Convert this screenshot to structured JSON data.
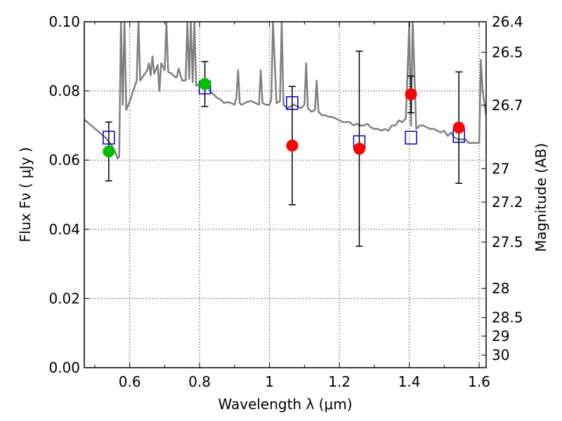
{
  "chart_data": {
    "type": "scatter",
    "title": "",
    "xlabel": "Wavelength  λ (μm)",
    "ylabel": "Flux  Fν  ( μJy )",
    "y2label": "Magnitude (AB)",
    "xlim": [
      0.47,
      1.62
    ],
    "ylim": [
      0.0,
      0.1
    ],
    "grid": true,
    "x_ticks": [
      {
        "value": 0.6,
        "label": "0.6"
      },
      {
        "value": 0.8,
        "label": "0.8"
      },
      {
        "value": 1.0,
        "label": "1"
      },
      {
        "value": 1.2,
        "label": "1.2"
      },
      {
        "value": 1.4,
        "label": "1.4"
      },
      {
        "value": 1.6,
        "label": "1.6"
      }
    ],
    "y_ticks": [
      {
        "value": 0.0,
        "label": "0.00"
      },
      {
        "value": 0.02,
        "label": "0.02"
      },
      {
        "value": 0.04,
        "label": "0.04"
      },
      {
        "value": 0.06,
        "label": "0.06"
      },
      {
        "value": 0.08,
        "label": "0.08"
      },
      {
        "value": 0.1,
        "label": "0.10"
      }
    ],
    "y2_ticks": [
      {
        "label": "26.4",
        "mag": 26.4
      },
      {
        "label": "26.5",
        "mag": 26.5
      },
      {
        "label": "26.7",
        "mag": 26.7
      },
      {
        "label": "27",
        "mag": 27.0
      },
      {
        "label": "27.2",
        "mag": 27.2
      },
      {
        "label": "27.5",
        "mag": 27.5
      },
      {
        "label": "28",
        "mag": 28.0
      },
      {
        "label": "28.5",
        "mag": 28.5
      },
      {
        "label": "29",
        "mag": 29.0
      },
      {
        "label": "30",
        "mag": 30.0
      }
    ],
    "observed_points": [
      {
        "x": 0.54,
        "y": 0.0625,
        "yerr": 0.0085,
        "color": "#00c000"
      },
      {
        "x": 0.815,
        "y": 0.082,
        "yerr": 0.0065,
        "color": "#00c000"
      },
      {
        "x": 1.065,
        "y": 0.0642,
        "yerr": 0.0171,
        "color": "#ff0000"
      },
      {
        "x": 1.257,
        "y": 0.0633,
        "yerr": 0.0282,
        "color": "#ff0000"
      },
      {
        "x": 1.405,
        "y": 0.079,
        "yerr": 0.0053,
        "color": "#ff0000"
      },
      {
        "x": 1.542,
        "y": 0.0694,
        "yerr": 0.0161,
        "color": "#ff0000"
      }
    ],
    "model_points": [
      {
        "x": 0.54,
        "y": 0.0665
      },
      {
        "x": 0.815,
        "y": 0.081
      },
      {
        "x": 1.065,
        "y": 0.0765
      },
      {
        "x": 1.257,
        "y": 0.0652
      },
      {
        "x": 1.405,
        "y": 0.0665
      },
      {
        "x": 1.542,
        "y": 0.067
      }
    ],
    "sed_model": [
      [
        0.47,
        0.0717
      ],
      [
        0.49,
        0.07
      ],
      [
        0.51,
        0.0683
      ],
      [
        0.53,
        0.0666
      ],
      [
        0.55,
        0.064
      ],
      [
        0.56,
        0.062
      ],
      [
        0.565,
        0.0605
      ],
      [
        0.57,
        0.061
      ],
      [
        0.575,
        0.1
      ],
      [
        0.58,
        0.076
      ],
      [
        0.585,
        0.1
      ],
      [
        0.59,
        0.0745
      ],
      [
        0.6,
        0.077
      ],
      [
        0.61,
        0.08
      ],
      [
        0.62,
        0.083
      ],
      [
        0.625,
        0.1
      ],
      [
        0.63,
        0.083
      ],
      [
        0.64,
        0.0845
      ],
      [
        0.65,
        0.086
      ],
      [
        0.655,
        0.088
      ],
      [
        0.66,
        0.0845
      ],
      [
        0.665,
        0.09
      ],
      [
        0.67,
        0.085
      ],
      [
        0.68,
        0.0875
      ],
      [
        0.685,
        0.08
      ],
      [
        0.69,
        0.088
      ],
      [
        0.7,
        0.086
      ],
      [
        0.705,
        0.1
      ],
      [
        0.71,
        0.0855
      ],
      [
        0.72,
        0.085
      ],
      [
        0.73,
        0.084
      ],
      [
        0.735,
        0.084
      ],
      [
        0.74,
        0.0865
      ],
      [
        0.75,
        0.083
      ],
      [
        0.76,
        0.083
      ],
      [
        0.765,
        0.1
      ],
      [
        0.77,
        0.0835
      ],
      [
        0.775,
        0.1
      ],
      [
        0.78,
        0.0825
      ],
      [
        0.785,
        0.1
      ],
      [
        0.79,
        0.0815
      ],
      [
        0.8,
        0.082
      ],
      [
        0.81,
        0.082
      ],
      [
        0.82,
        0.082
      ],
      [
        0.83,
        0.08
      ],
      [
        0.84,
        0.079
      ],
      [
        0.85,
        0.078
      ],
      [
        0.86,
        0.0775
      ],
      [
        0.87,
        0.0765
      ],
      [
        0.88,
        0.0768
      ],
      [
        0.89,
        0.0765
      ],
      [
        0.9,
        0.076
      ],
      [
        0.905,
        0.078
      ],
      [
        0.91,
        0.086
      ],
      [
        0.915,
        0.0765
      ],
      [
        0.92,
        0.076
      ],
      [
        0.93,
        0.0765
      ],
      [
        0.94,
        0.077
      ],
      [
        0.95,
        0.077
      ],
      [
        0.96,
        0.0765
      ],
      [
        0.97,
        0.076
      ],
      [
        0.975,
        0.086
      ],
      [
        0.98,
        0.0765
      ],
      [
        0.99,
        0.076
      ],
      [
        1.0,
        0.076
      ],
      [
        1.005,
        0.0775
      ],
      [
        1.01,
        0.1
      ],
      [
        1.02,
        0.0765
      ],
      [
        1.03,
        0.077
      ],
      [
        1.035,
        0.1
      ],
      [
        1.04,
        0.076
      ],
      [
        1.05,
        0.075
      ],
      [
        1.06,
        0.0755
      ],
      [
        1.07,
        0.076
      ],
      [
        1.08,
        0.0755
      ],
      [
        1.09,
        0.075
      ],
      [
        1.1,
        0.076
      ],
      [
        1.105,
        0.088
      ],
      [
        1.11,
        0.075
      ],
      [
        1.12,
        0.074
      ],
      [
        1.13,
        0.0745
      ],
      [
        1.135,
        0.083
      ],
      [
        1.14,
        0.074
      ],
      [
        1.15,
        0.073
      ],
      [
        1.16,
        0.073
      ],
      [
        1.17,
        0.0725
      ],
      [
        1.18,
        0.0725
      ],
      [
        1.19,
        0.072
      ],
      [
        1.2,
        0.0715
      ],
      [
        1.21,
        0.071
      ],
      [
        1.22,
        0.071
      ],
      [
        1.23,
        0.071
      ],
      [
        1.24,
        0.07
      ],
      [
        1.25,
        0.0705
      ],
      [
        1.26,
        0.07
      ],
      [
        1.27,
        0.07
      ],
      [
        1.28,
        0.0705
      ],
      [
        1.29,
        0.0695
      ],
      [
        1.3,
        0.069
      ],
      [
        1.31,
        0.069
      ],
      [
        1.32,
        0.0685
      ],
      [
        1.33,
        0.069
      ],
      [
        1.34,
        0.0685
      ],
      [
        1.35,
        0.07
      ],
      [
        1.36,
        0.07
      ],
      [
        1.37,
        0.0715
      ],
      [
        1.38,
        0.071
      ],
      [
        1.39,
        0.072
      ],
      [
        1.395,
        0.085
      ],
      [
        1.4,
        0.1
      ],
      [
        1.405,
        0.07
      ],
      [
        1.41,
        0.1
      ],
      [
        1.42,
        0.069
      ],
      [
        1.43,
        0.07
      ],
      [
        1.44,
        0.07
      ],
      [
        1.45,
        0.0695
      ],
      [
        1.46,
        0.069
      ],
      [
        1.47,
        0.069
      ],
      [
        1.48,
        0.0685
      ],
      [
        1.49,
        0.068
      ],
      [
        1.5,
        0.0685
      ],
      [
        1.51,
        0.067
      ],
      [
        1.52,
        0.068
      ],
      [
        1.53,
        0.0665
      ],
      [
        1.54,
        0.066
      ],
      [
        1.55,
        0.066
      ],
      [
        1.56,
        0.066
      ],
      [
        1.57,
        0.065
      ],
      [
        1.58,
        0.065
      ],
      [
        1.59,
        0.065
      ],
      [
        1.6,
        0.065
      ],
      [
        1.605,
        0.089
      ],
      [
        1.61,
        0.08
      ],
      [
        1.62,
        0.073
      ]
    ],
    "colors": {
      "model_curve": "#808080",
      "model_marker": "#0000cc",
      "errorbar": "#000000"
    }
  }
}
